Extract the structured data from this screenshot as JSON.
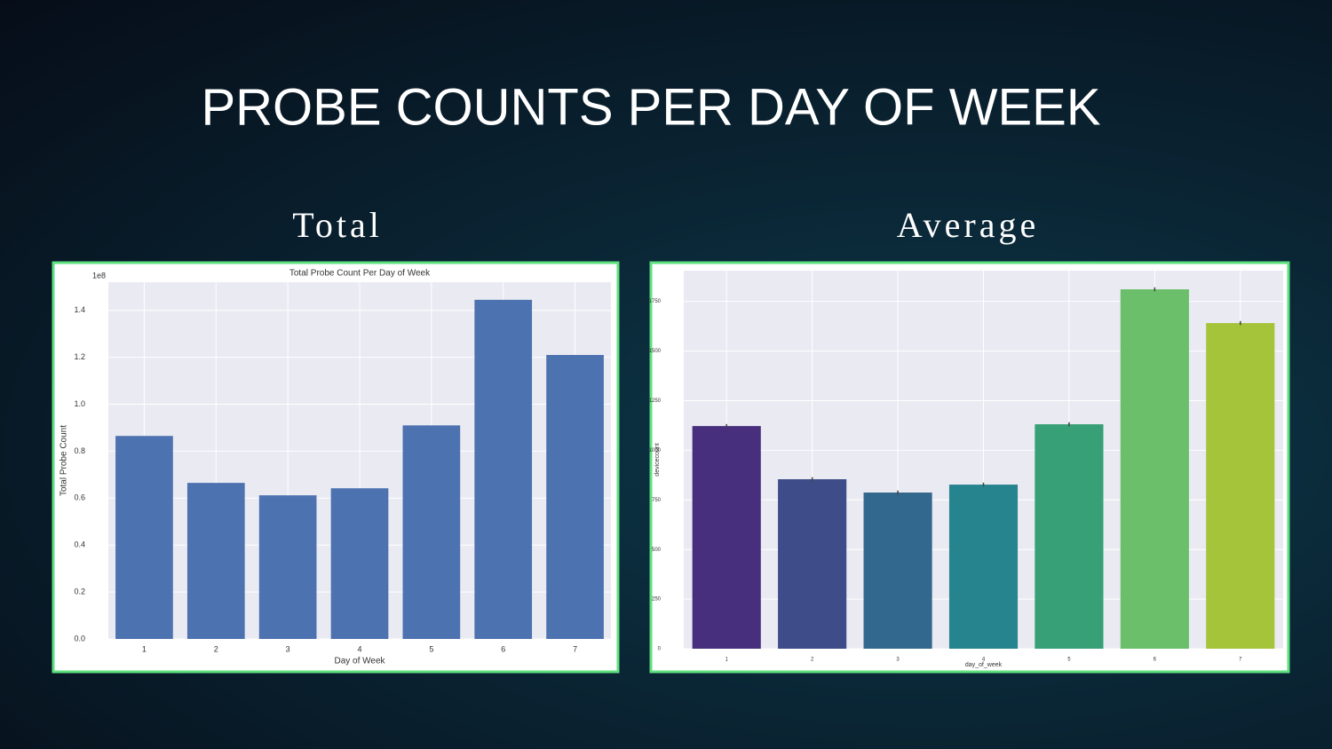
{
  "title": "PROBE COUNTS PER DAY OF WEEK",
  "captions": [
    "Total",
    "Average"
  ],
  "chart_data": [
    {
      "type": "bar",
      "title": "Total Probe Count Per Day of Week",
      "x_label": "Day of Week",
      "y_label": "Total Probe Count",
      "offset_text": "1e8",
      "categories": [
        "1",
        "2",
        "3",
        "4",
        "5",
        "6",
        "7"
      ],
      "values": [
        0.865,
        0.665,
        0.612,
        0.642,
        0.91,
        1.445,
        1.21
      ],
      "color": "#4c72b0",
      "ylim": [
        0,
        1.52
      ],
      "yticks": [
        {
          "value": 0,
          "label": "0.0"
        },
        0.2,
        0.4,
        0.6,
        0.8,
        {
          "value": 1,
          "label": "1.0"
        },
        1.2,
        1.4
      ],
      "grid": true
    },
    {
      "type": "bar",
      "x_label": "day_of_week",
      "y_label": "devicecount",
      "categories": [
        "1",
        "2",
        "3",
        "4",
        "5",
        "6",
        "7"
      ],
      "values": [
        1122,
        854,
        787,
        827,
        1131,
        1811,
        1641
      ],
      "errors": [
        10,
        10,
        10,
        10,
        10,
        10,
        10
      ],
      "colors": [
        "#472f7d",
        "#3e4c8a",
        "#32688e",
        "#26848e",
        "#37a077",
        "#6cbf6a",
        "#a5c43a"
      ],
      "ylim": [
        0,
        1905
      ],
      "yticks": [
        0,
        250,
        500,
        750,
        1000,
        1250,
        1500,
        1750
      ],
      "grid": true
    }
  ]
}
